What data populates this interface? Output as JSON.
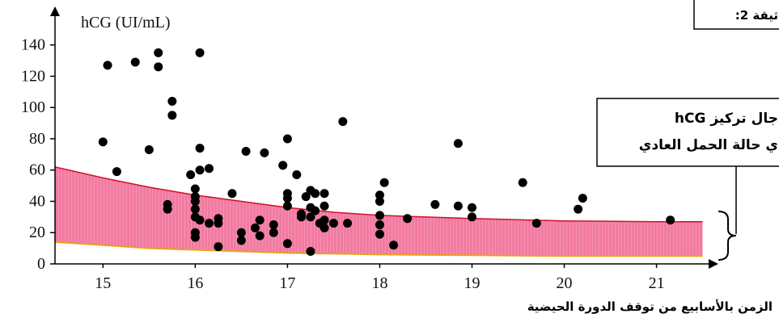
{
  "chart_data": {
    "type": "scatter",
    "title": "hCG (UI/mL)",
    "x_label": "الزمن بالأسابيع من توقف الدورة الحيضية",
    "document_label": "ثيقة 2:",
    "annotation": [
      "جال تركيز hCG",
      "ي حالة الحمل العادي"
    ],
    "xlim": [
      14.48,
      21.6
    ],
    "ylim": [
      0,
      161
    ],
    "xticks": [
      15,
      16,
      17,
      18,
      19,
      20,
      21
    ],
    "yticks": [
      0,
      20,
      40,
      60,
      80,
      100,
      120,
      140
    ],
    "color": "#000000",
    "band": {
      "color": "#f27aa0",
      "upper_color": "#d0102a",
      "lower_color": "#e8a21a",
      "x": [
        14.48,
        15,
        15.5,
        16,
        16.5,
        17,
        17.5,
        18,
        19,
        20,
        21,
        21.5
      ],
      "upper": [
        62,
        55,
        49,
        44,
        40,
        36,
        33,
        31,
        29,
        27.5,
        27,
        27
      ],
      "lower": [
        14,
        12,
        10,
        9,
        8,
        7,
        6.5,
        6,
        5.5,
        5,
        5,
        5
      ]
    },
    "x": [
      15.05,
      15.35,
      15.6,
      15.6,
      16.05,
      15.75,
      15.75,
      15.0,
      15.15,
      15.5,
      16.05,
      15.95,
      16.05,
      16.15,
      15.7,
      15.7,
      16.0,
      16.0,
      16.0,
      16.0,
      16.0,
      16.0,
      16.0,
      16.05,
      16.15,
      16.25,
      16.25,
      16.25,
      16.4,
      16.5,
      16.5,
      16.55,
      16.65,
      16.7,
      16.7,
      16.75,
      16.85,
      16.85,
      16.95,
      17.0,
      17.0,
      17.0,
      17.0,
      17.0,
      17.1,
      17.15,
      17.15,
      17.2,
      17.25,
      17.25,
      17.25,
      17.25,
      17.3,
      17.3,
      17.35,
      17.4,
      17.4,
      17.4,
      17.4,
      17.5,
      17.6,
      17.65,
      18.0,
      18.0,
      18.0,
      18.0,
      18.0,
      18.05,
      18.15,
      18.3,
      18.6,
      18.85,
      18.85,
      19.0,
      19.0,
      19.55,
      19.7,
      20.15,
      20.2,
      21.15
    ],
    "values": [
      127,
      129,
      135,
      126,
      135,
      104,
      95,
      78,
      59,
      73,
      74,
      57,
      60,
      61,
      38,
      35,
      48,
      43,
      40,
      35,
      30,
      20,
      17,
      28,
      26,
      29,
      26,
      11,
      45,
      20,
      15,
      72,
      23,
      18,
      28,
      71,
      20,
      25,
      63,
      45,
      42,
      37,
      13,
      80,
      57,
      32,
      30,
      43,
      47,
      36,
      30,
      8,
      34,
      45,
      26,
      45,
      37,
      28,
      23,
      26,
      91,
      26,
      44,
      40,
      31,
      25,
      19,
      52,
      12,
      29,
      38,
      37,
      77,
      36,
      30,
      52,
      26,
      35,
      42,
      28
    ]
  }
}
